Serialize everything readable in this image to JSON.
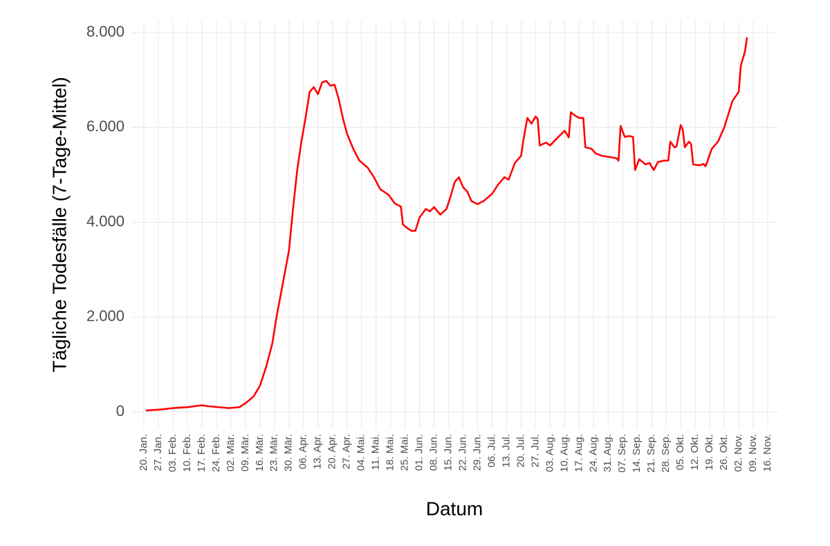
{
  "chart_data": {
    "type": "line",
    "x_title": "Datum",
    "y_title": "Tägliche Todesfälle (7-Tage-Mittel)",
    "grid": true,
    "xlim": [
      "01-14",
      "11-21"
    ],
    "ylim": [
      -350,
      8250
    ],
    "yticks": [
      0,
      {
        "value": 2000,
        "label": "2.000"
      },
      {
        "value": 4000,
        "label": "4.000"
      },
      {
        "value": 6000,
        "label": "6.000"
      },
      {
        "value": 8000,
        "label": "8.000"
      }
    ],
    "xticks": [
      {
        "value": "01-20",
        "label": "20. Jan."
      },
      {
        "value": "01-27",
        "label": "27. Jan."
      },
      {
        "value": "02-03",
        "label": "03. Feb."
      },
      {
        "value": "02-10",
        "label": "10. Feb."
      },
      {
        "value": "02-17",
        "label": "17. Feb."
      },
      {
        "value": "02-24",
        "label": "24. Feb."
      },
      {
        "value": "03-02",
        "label": "02. Mär."
      },
      {
        "value": "03-09",
        "label": "09. Mär."
      },
      {
        "value": "03-16",
        "label": "16. Mär."
      },
      {
        "value": "03-23",
        "label": "23. Mär."
      },
      {
        "value": "03-30",
        "label": "30. Mär."
      },
      {
        "value": "04-06",
        "label": "06. Apr."
      },
      {
        "value": "04-13",
        "label": "13. Apr."
      },
      {
        "value": "04-20",
        "label": "20. Apr."
      },
      {
        "value": "04-27",
        "label": "27. Apr."
      },
      {
        "value": "05-04",
        "label": "04. Mai."
      },
      {
        "value": "05-11",
        "label": "11. Mai."
      },
      {
        "value": "05-18",
        "label": "18. Mai."
      },
      {
        "value": "05-25",
        "label": "25. Mai."
      },
      {
        "value": "06-01",
        "label": "01. Jun."
      },
      {
        "value": "06-08",
        "label": "08. Jun."
      },
      {
        "value": "06-15",
        "label": "15. Jun."
      },
      {
        "value": "06-22",
        "label": "22. Jun."
      },
      {
        "value": "06-29",
        "label": "29. Jun."
      },
      {
        "value": "07-06",
        "label": "06. Jul."
      },
      {
        "value": "07-13",
        "label": "13. Jul."
      },
      {
        "value": "07-20",
        "label": "20. Jul."
      },
      {
        "value": "07-27",
        "label": "27. Jul."
      },
      {
        "value": "08-03",
        "label": "03. Aug."
      },
      {
        "value": "08-10",
        "label": "10. Aug."
      },
      {
        "value": "08-17",
        "label": "17. Aug."
      },
      {
        "value": "08-24",
        "label": "24. Aug."
      },
      {
        "value": "08-31",
        "label": "31. Aug."
      },
      {
        "value": "09-07",
        "label": "07. Sep."
      },
      {
        "value": "09-14",
        "label": "14. Sep."
      },
      {
        "value": "09-21",
        "label": "21. Sep."
      },
      {
        "value": "09-28",
        "label": "28. Sep."
      },
      {
        "value": "10-05",
        "label": "05. Okt."
      },
      {
        "value": "10-12",
        "label": "12. Okt."
      },
      {
        "value": "10-19",
        "label": "19. Okt."
      },
      {
        "value": "10-26",
        "label": "26. Okt."
      },
      {
        "value": "11-02",
        "label": "02. Nov."
      },
      {
        "value": "11-09",
        "label": "09. Nov."
      },
      {
        "value": "11-16",
        "label": "16. Nov."
      }
    ],
    "x": [
      "01-21",
      "01-28",
      "02-03",
      "02-10",
      "02-17",
      "02-20",
      "02-25",
      "03-01",
      "03-06",
      "03-09",
      "03-13",
      "03-16",
      "03-19",
      "03-22",
      "03-24",
      "03-27",
      "03-30",
      "04-01",
      "04-03",
      "04-05",
      "04-07",
      "04-09",
      "04-11",
      "04-13",
      "04-15",
      "04-17",
      "04-19",
      "04-21",
      "04-23",
      "04-25",
      "04-27",
      "04-30",
      "05-03",
      "05-07",
      "05-10",
      "05-13",
      "05-17",
      "05-20",
      "05-23",
      "05-24",
      "05-26",
      "05-28",
      "05-30",
      "06-01",
      "06-04",
      "06-06",
      "06-08",
      "06-11",
      "06-14",
      "06-16",
      "06-18",
      "06-20",
      "06-22",
      "06-24",
      "06-26",
      "06-29",
      "07-02",
      "07-06",
      "07-09",
      "07-12",
      "07-14",
      "07-17",
      "07-20",
      "07-21",
      "07-23",
      "07-25",
      "07-27",
      "07-28",
      "07-29",
      "08-01",
      "08-03",
      "08-07",
      "08-10",
      "08-12",
      "08-13",
      "08-15",
      "08-17",
      "08-19",
      "08-20",
      "08-23",
      "08-25",
      "08-28",
      "08-31",
      "09-04",
      "09-05",
      "09-06",
      "09-08",
      "09-10",
      "09-12",
      "09-13",
      "09-15",
      "09-18",
      "09-20",
      "09-22",
      "09-24",
      "09-27",
      "09-29",
      "09-30",
      "10-02",
      "10-03",
      "10-05",
      "10-06",
      "10-07",
      "10-09",
      "10-10",
      "10-11",
      "10-14",
      "10-16",
      "10-17",
      "10-18",
      "10-20",
      "10-23",
      "10-26",
      "10-28",
      "10-30",
      "11-02",
      "11-03",
      "11-05",
      "11-06"
    ],
    "series": [
      {
        "color": "#ff0000",
        "values": [
          30,
          50,
          80,
          100,
          140,
          120,
          100,
          80,
          100,
          180,
          330,
          550,
          950,
          1450,
          2000,
          2700,
          3400,
          4300,
          5100,
          5700,
          6200,
          6750,
          6850,
          6700,
          6950,
          6980,
          6880,
          6900,
          6600,
          6200,
          5870,
          5550,
          5300,
          5150,
          4950,
          4700,
          4580,
          4400,
          4330,
          3950,
          3880,
          3820,
          3820,
          4100,
          4280,
          4230,
          4320,
          4160,
          4280,
          4550,
          4850,
          4950,
          4740,
          4650,
          4450,
          4380,
          4450,
          4600,
          4800,
          4950,
          4900,
          5250,
          5400,
          5700,
          6200,
          6080,
          6230,
          6180,
          5620,
          5680,
          5620,
          5800,
          5930,
          5790,
          6320,
          6250,
          6200,
          6200,
          5580,
          5550,
          5450,
          5400,
          5380,
          5350,
          5300,
          6030,
          5800,
          5820,
          5800,
          5100,
          5330,
          5220,
          5250,
          5100,
          5270,
          5300,
          5300,
          5700,
          5580,
          5600,
          6050,
          5950,
          5580,
          5700,
          5650,
          5220,
          5200,
          5230,
          5180,
          5300,
          5550,
          5700,
          6000,
          6280,
          6560,
          6750,
          7300,
          7600,
          7900
        ]
      }
    ]
  }
}
